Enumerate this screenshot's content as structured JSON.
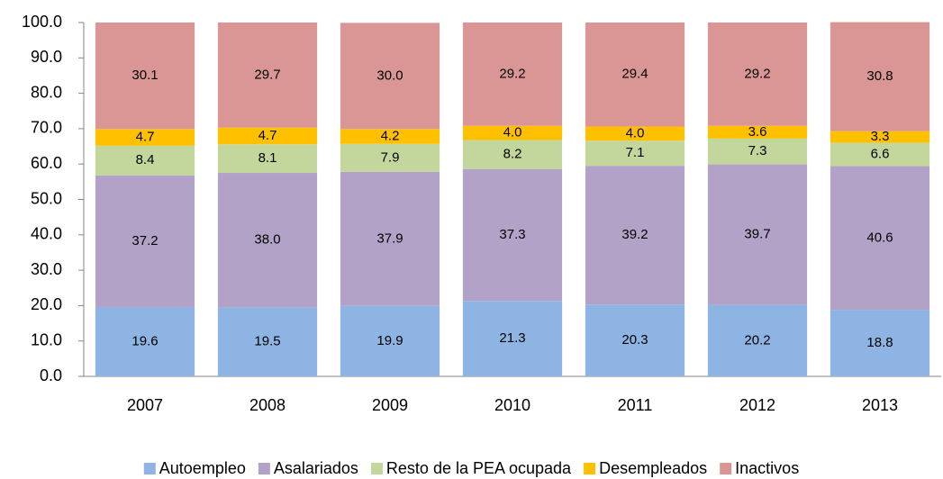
{
  "chart_data": {
    "type": "stacked_bar",
    "categories": [
      "2007",
      "2008",
      "2009",
      "2010",
      "2011",
      "2012",
      "2013"
    ],
    "series": [
      {
        "name": "Autoempleo",
        "color": "#8eb4e3",
        "values": [
          19.6,
          19.5,
          19.9,
          21.3,
          20.3,
          20.2,
          18.8
        ],
        "value_labels": [
          "19.6",
          "19.5",
          "19.9",
          "21.3",
          "20.3",
          "20.2",
          "18.8"
        ]
      },
      {
        "name": "Asalariados",
        "color": "#b3a2c7",
        "values": [
          37.2,
          38,
          37.9,
          37.3,
          39.2,
          39.7,
          40.6
        ],
        "value_labels": [
          "37.2",
          "38.0",
          "37.9",
          "37.3",
          "39.2",
          "39.7",
          "40.6"
        ]
      },
      {
        "name": "Resto de la PEA ocupada",
        "color": "#c3d69b",
        "values": [
          8.4,
          8.1,
          7.9,
          8.2,
          7.1,
          7.3,
          6.6
        ],
        "value_labels": [
          "8.4",
          "8.1",
          "7.9",
          "8.2",
          "7.1",
          "7.3",
          "6.6"
        ]
      },
      {
        "name": "Desempleados",
        "color": "#ffc000",
        "values": [
          4.7,
          4.7,
          4.2,
          4,
          4,
          3.6,
          3.3
        ],
        "value_labels": [
          "4.7",
          "4.7",
          "4.2",
          "4.0",
          "4.0",
          "3.6",
          "3.3"
        ]
      },
      {
        "name": "Inactivos",
        "color": "#d99694",
        "values": [
          30.1,
          29.7,
          30,
          29.2,
          29.4,
          29.2,
          30.8
        ],
        "value_labels": [
          "30.1",
          "29.7",
          "30.0",
          "29.2",
          "29.4",
          "29.2",
          "30.8"
        ]
      }
    ],
    "ylim": [
      0,
      100
    ],
    "yticks": [
      {
        "value": 0,
        "label": "0.0"
      },
      {
        "value": 10,
        "label": "10.0"
      },
      {
        "value": 20,
        "label": "20.0"
      },
      {
        "value": 30,
        "label": "30.0"
      },
      {
        "value": 40,
        "label": "40.0"
      },
      {
        "value": 50,
        "label": "50.0"
      },
      {
        "value": 60,
        "label": "60.0"
      },
      {
        "value": 70,
        "label": "70.0"
      },
      {
        "value": 80,
        "label": "80.0"
      },
      {
        "value": 90,
        "label": "90.0"
      },
      {
        "value": 100,
        "label": "100.0"
      }
    ],
    "legend": "bottom"
  }
}
